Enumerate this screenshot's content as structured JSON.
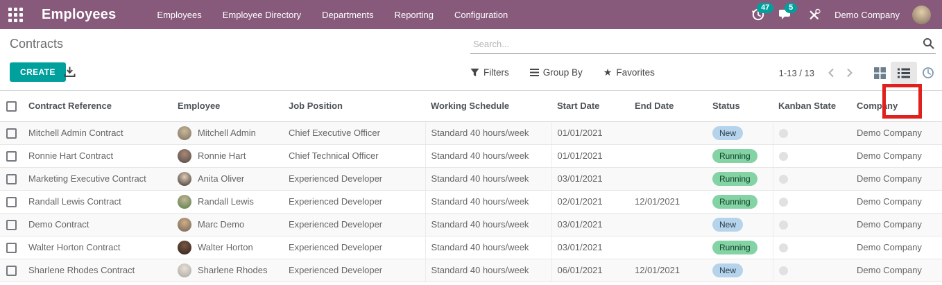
{
  "navbar": {
    "brand": "Employees",
    "menu_items": [
      "Employees",
      "Employee Directory",
      "Departments",
      "Reporting",
      "Configuration"
    ],
    "activity_badge": "47",
    "message_badge": "5",
    "company_name": "Demo Company",
    "avatar_colors": [
      "#e5cdab",
      "#7d6e5c"
    ]
  },
  "control_panel": {
    "breadcrumb": "Contracts",
    "create_button": "CREATE",
    "search_placeholder": "Search...",
    "filters": "Filters",
    "group_by": "Group By",
    "favorites": "Favorites",
    "pager": "1-13 / 13"
  },
  "colors": {
    "navbar_bg": "#875A7B",
    "accent_teal": "#00A09D",
    "highlight_red": "#E0201C",
    "status_new_bg": "#B5D3EB",
    "status_new_text": "#2B3E4F",
    "status_running_bg": "#83D3A5",
    "status_running_text": "#14432A",
    "kanban_dot": "#E1E1E4"
  },
  "table": {
    "headers": [
      "Contract Reference",
      "Employee",
      "Job Position",
      "Working Schedule",
      "Start Date",
      "End Date",
      "Status",
      "Kanban State",
      "Company"
    ],
    "rows": [
      {
        "contract_reference": "Mitchell Admin Contract",
        "employee": "Mitchell Admin",
        "job_position": "Chief Executive Officer",
        "working_schedule": "Standard 40 hours/week",
        "start_date": "01/01/2021",
        "end_date": "",
        "status": "New",
        "kanban_state": "normal",
        "company": "Demo Company",
        "avatar_colors": [
          "#cbb89a",
          "#77705f"
        ]
      },
      {
        "contract_reference": "Ronnie Hart Contract",
        "employee": "Ronnie Hart",
        "job_position": "Chief Technical Officer",
        "working_schedule": "Standard 40 hours/week",
        "start_date": "01/01/2021",
        "end_date": "",
        "status": "Running",
        "kanban_state": "normal",
        "company": "Demo Company",
        "avatar_colors": [
          "#a98878",
          "#4f4a43"
        ]
      },
      {
        "contract_reference": "Marketing Executive Contract",
        "employee": "Anita Oliver",
        "job_position": "Experienced Developer",
        "working_schedule": "Standard 40 hours/week",
        "start_date": "03/01/2021",
        "end_date": "",
        "status": "Running",
        "kanban_state": "normal",
        "company": "Demo Company",
        "avatar_colors": [
          "#e3cdbb",
          "#35302b"
        ]
      },
      {
        "contract_reference": "Randall Lewis Contract",
        "employee": "Randall Lewis",
        "job_position": "Experienced Developer",
        "working_schedule": "Standard 40 hours/week",
        "start_date": "02/01/2021",
        "end_date": "12/01/2021",
        "status": "Running",
        "kanban_state": "normal",
        "company": "Demo Company",
        "avatar_colors": [
          "#c7b49b",
          "#4e7e41"
        ]
      },
      {
        "contract_reference": "Demo Contract",
        "employee": "Marc Demo",
        "job_position": "Experienced Developer",
        "working_schedule": "Standard 40 hours/week",
        "start_date": "03/01/2021",
        "end_date": "",
        "status": "New",
        "kanban_state": "normal",
        "company": "Demo Company",
        "avatar_colors": [
          "#d1ad88",
          "#6d6154"
        ]
      },
      {
        "contract_reference": "Walter Horton Contract",
        "employee": "Walter Horton",
        "job_position": "Experienced Developer",
        "working_schedule": "Standard 40 hours/week",
        "start_date": "03/01/2021",
        "end_date": "",
        "status": "Running",
        "kanban_state": "normal",
        "company": "Demo Company",
        "avatar_colors": [
          "#7c5643",
          "#2a211b"
        ]
      },
      {
        "contract_reference": "Sharlene Rhodes Contract",
        "employee": "Sharlene Rhodes",
        "job_position": "Experienced Developer",
        "working_schedule": "Standard 40 hours/week",
        "start_date": "06/01/2021",
        "end_date": "12/01/2021",
        "status": "New",
        "kanban_state": "normal",
        "company": "Demo Company",
        "avatar_colors": [
          "#e8e2d9",
          "#a8a39c"
        ]
      }
    ]
  }
}
